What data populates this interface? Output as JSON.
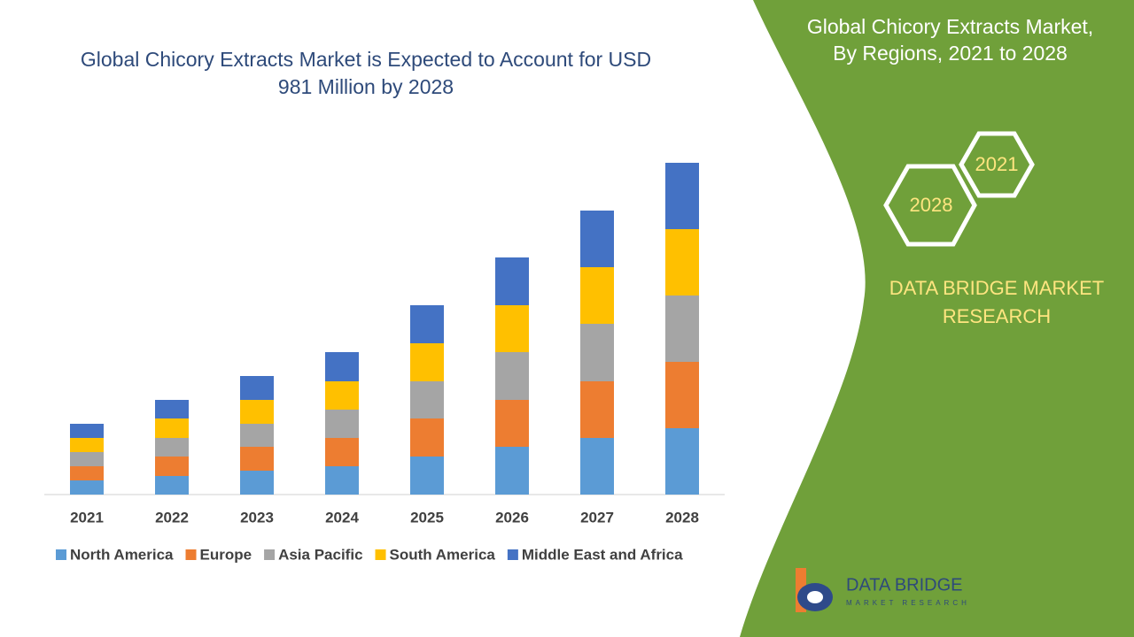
{
  "chart_data": {
    "type": "stacked-bar",
    "title": "Global Chicory Extracts Market is Expected to Account for USD 981 Million by 2028",
    "categories": [
      "2021",
      "2022",
      "2023",
      "2024",
      "2025",
      "2026",
      "2027",
      "2028"
    ],
    "series": [
      {
        "name": "North America",
        "color": "#5b9bd5",
        "values": [
          16,
          21,
          27,
          32,
          43,
          54,
          64,
          75
        ]
      },
      {
        "name": "Europe",
        "color": "#ed7d31",
        "values": [
          16,
          22,
          27,
          32,
          43,
          53,
          64,
          75
        ]
      },
      {
        "name": "Asia Pacific",
        "color": "#a5a5a5",
        "values": [
          16,
          21,
          26,
          32,
          42,
          54,
          65,
          75
        ]
      },
      {
        "name": "South America",
        "color": "#ffc000",
        "values": [
          16,
          22,
          27,
          32,
          43,
          53,
          64,
          75
        ]
      },
      {
        "name": "Middle East and Africa",
        "color": "#4472c4",
        "values": [
          16,
          21,
          27,
          33,
          43,
          54,
          64,
          75
        ]
      }
    ],
    "legend": "bottom"
  },
  "panel": {
    "title": "Global Chicory Extracts Market, By Regions, 2021 to 2028",
    "hexagons": [
      "2021",
      "2028"
    ],
    "brand": "DATA BRIDGE MARKET RESEARCH"
  },
  "logo": {
    "name": "DATA BRIDGE",
    "tagline": "MARKET RESEARCH"
  }
}
